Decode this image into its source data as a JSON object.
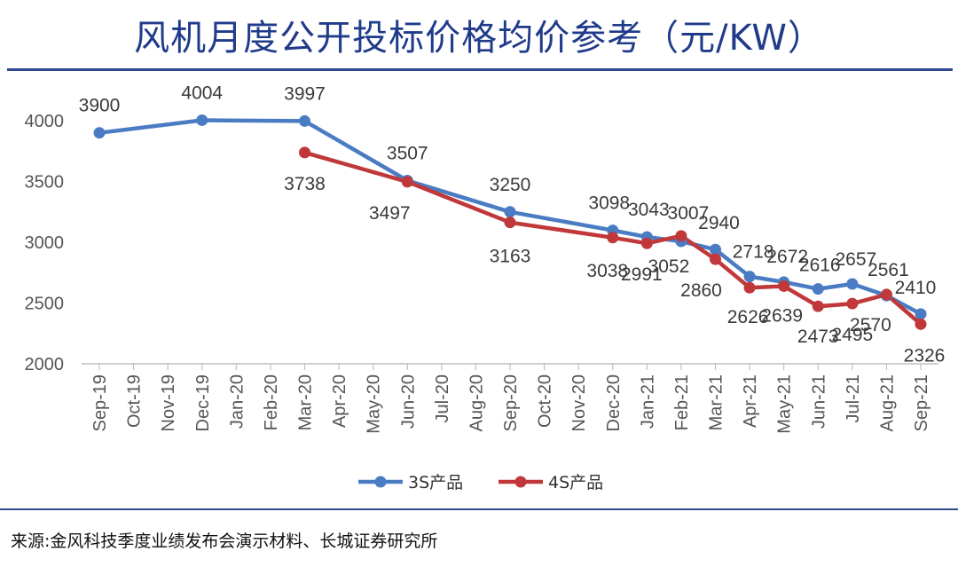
{
  "title": "风机月度公开投标价格均价参考（元/KW）",
  "source": "来源:金风科技季度业绩发布会演示材料、长城证券研究所",
  "colors": {
    "s3": "#4a7cc4",
    "s4": "#c0383a",
    "rule": "#2e4a8c",
    "title": "#1f3b8a"
  },
  "chart_data": {
    "type": "line",
    "title": "风机月度公开投标价格均价参考（元/KW）",
    "categories": [
      "Sep-19",
      "Oct-19",
      "Nov-19",
      "Dec-19",
      "Jan-20",
      "Feb-20",
      "Mar-20",
      "Apr-20",
      "May-20",
      "Jun-20",
      "Jul-20",
      "Aug-20",
      "Sep-20",
      "Oct-20",
      "Nov-20",
      "Dec-20",
      "Jan-21",
      "Feb-21",
      "Mar-21",
      "Apr-21",
      "May-21",
      "Jun-21",
      "Jul-21",
      "Aug-21",
      "Sep-21"
    ],
    "yticks": [
      "2000",
      "2500",
      "3000",
      "3500",
      "4000"
    ],
    "ylim": [
      2000,
      4000
    ],
    "legend_position": "bottom",
    "grid": false,
    "series": [
      {
        "name": "3S产品",
        "values": [
          3900,
          null,
          null,
          4004,
          null,
          null,
          3997,
          null,
          null,
          3507,
          null,
          null,
          3250,
          null,
          null,
          3098,
          3043,
          3007,
          2940,
          2718,
          2672,
          2616,
          2657,
          2561,
          2410
        ]
      },
      {
        "name": "4S产品",
        "values": [
          null,
          null,
          null,
          null,
          null,
          null,
          3738,
          null,
          null,
          3497,
          null,
          null,
          3163,
          null,
          null,
          3038,
          2991,
          3052,
          2860,
          2626,
          2639,
          2473,
          2495,
          2570,
          2326
        ]
      }
    ]
  }
}
